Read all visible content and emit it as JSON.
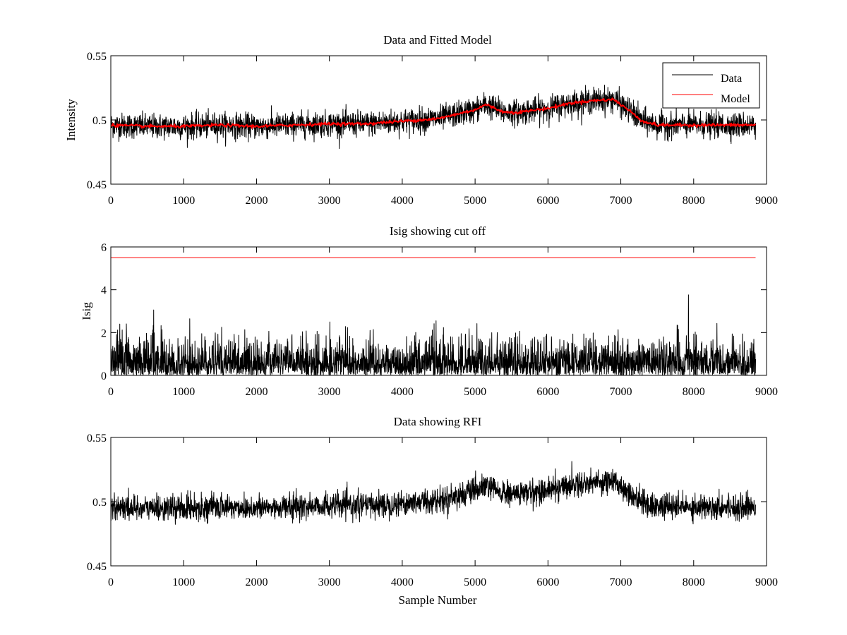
{
  "chart_data": [
    {
      "type": "line",
      "title": "Data and Fitted Model",
      "xlabel": "",
      "ylabel": "Intensity",
      "xlim": [
        0,
        9000
      ],
      "ylim": [
        0.45,
        0.55
      ],
      "xticks": [
        0,
        1000,
        2000,
        3000,
        4000,
        5000,
        6000,
        7000,
        8000,
        9000
      ],
      "yticks": [
        0.45,
        0.5,
        0.55
      ],
      "ytick_labels": [
        "0.45",
        "0.5",
        "0.55"
      ],
      "grid": false,
      "legend": "top-right",
      "series": [
        {
          "name": "Data",
          "color": "#000000",
          "style": "noisy",
          "noise": 0.0048,
          "x": [
            0,
            500,
            1000,
            1500,
            2000,
            2500,
            3000,
            3500,
            4000,
            4500,
            5000,
            5150,
            5400,
            5600,
            6000,
            6300,
            6600,
            6900,
            7100,
            7300,
            7500,
            8000,
            8500,
            8850
          ],
          "y": [
            0.496,
            0.495,
            0.495,
            0.496,
            0.495,
            0.496,
            0.497,
            0.497,
            0.499,
            0.501,
            0.508,
            0.512,
            0.506,
            0.506,
            0.509,
            0.513,
            0.515,
            0.516,
            0.508,
            0.499,
            0.496,
            0.496,
            0.496,
            0.496
          ]
        },
        {
          "name": "Model",
          "color": "#ff0000",
          "style": "smooth",
          "noise": 0.0006,
          "x": [
            0,
            500,
            1000,
            1500,
            2000,
            2500,
            3000,
            3500,
            4000,
            4500,
            5000,
            5150,
            5400,
            5600,
            6000,
            6300,
            6600,
            6900,
            7100,
            7300,
            7500,
            8000,
            8500,
            8850
          ],
          "y": [
            0.496,
            0.495,
            0.495,
            0.496,
            0.495,
            0.496,
            0.497,
            0.497,
            0.499,
            0.501,
            0.508,
            0.512,
            0.506,
            0.506,
            0.509,
            0.513,
            0.515,
            0.516,
            0.508,
            0.499,
            0.496,
            0.496,
            0.496,
            0.496
          ]
        }
      ]
    },
    {
      "type": "line",
      "title": "Isig showing cut off",
      "xlabel": "",
      "ylabel": "Isig",
      "xlim": [
        0,
        9000
      ],
      "ylim": [
        0,
        6
      ],
      "xticks": [
        0,
        1000,
        2000,
        3000,
        4000,
        5000,
        6000,
        7000,
        8000,
        9000
      ],
      "yticks": [
        0,
        2,
        4,
        6
      ],
      "ytick_labels": [
        "0",
        "2",
        "4",
        "6"
      ],
      "grid": false,
      "series": [
        {
          "color": "#000000",
          "style": "abs-noise",
          "scale": 0.8,
          "max": 3.8,
          "x": [
            0,
            8850
          ],
          "y": [
            0,
            0
          ]
        },
        {
          "color": "#ff0000",
          "style": "flat",
          "x": [
            0,
            8850
          ],
          "y": [
            5.5,
            5.5
          ]
        }
      ]
    },
    {
      "type": "line",
      "title": "Data showing RFI",
      "xlabel": "Sample Number",
      "ylabel": "",
      "xlim": [
        0,
        9000
      ],
      "ylim": [
        0.45,
        0.55
      ],
      "xticks": [
        0,
        1000,
        2000,
        3000,
        4000,
        5000,
        6000,
        7000,
        8000,
        9000
      ],
      "yticks": [
        0.45,
        0.5,
        0.55
      ],
      "ytick_labels": [
        "0.45",
        "0.5",
        "0.55"
      ],
      "grid": false,
      "series": [
        {
          "color": "#000000",
          "style": "noisy",
          "noise": 0.0048,
          "x": [
            0,
            500,
            1000,
            1500,
            2000,
            2500,
            3000,
            3500,
            4000,
            4500,
            5000,
            5150,
            5400,
            5600,
            6000,
            6300,
            6600,
            6900,
            7100,
            7300,
            7500,
            8000,
            8500,
            8850
          ],
          "y": [
            0.496,
            0.495,
            0.495,
            0.496,
            0.495,
            0.496,
            0.497,
            0.497,
            0.499,
            0.501,
            0.508,
            0.512,
            0.506,
            0.506,
            0.509,
            0.513,
            0.515,
            0.516,
            0.508,
            0.499,
            0.496,
            0.496,
            0.496,
            0.496
          ]
        }
      ]
    }
  ]
}
